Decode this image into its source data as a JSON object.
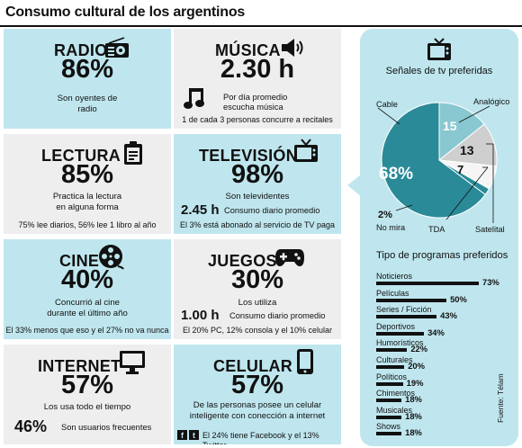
{
  "title": "Consumo cultural de los argentinos",
  "cards": {
    "radio": {
      "label": "RADIO",
      "pct": "86%",
      "desc": [
        "Son oyentes de",
        "radio"
      ]
    },
    "musica": {
      "label": "MÚSICA",
      "value": "2.30 h",
      "desc": [
        "Por día promedio",
        "escucha música"
      ],
      "extra": "1 de cada 3 personas concurre a recitales"
    },
    "lectura": {
      "label": "LECTURA",
      "pct": "85%",
      "desc": [
        "Practica la lectura",
        "en alguna forma"
      ],
      "extra": "75% lee diarios, 56% lee 1 libro al año"
    },
    "television": {
      "label": "TELEVISIÓN",
      "pct": "98%",
      "desc": [
        "Son televidentes"
      ],
      "sub_value": "2.45 h",
      "sub_desc": "Consumo diario promedio",
      "extra": "El 3% está abonado al servicio de TV paga"
    },
    "cine": {
      "label": "CINE",
      "pct": "40%",
      "desc": [
        "Concurrió al cine",
        "durante el último año"
      ],
      "extra": "El 33% menos que eso y el 27% no va nunca"
    },
    "juegos": {
      "label": "JUEGOS",
      "pct": "30%",
      "desc": [
        "Los utiliza"
      ],
      "sub_value": "1.00 h",
      "sub_desc": "Consumo diario promedio",
      "extra": "El 20% PC, 12% consola y el 10% celular"
    },
    "internet": {
      "label": "INTERNET",
      "pct": "57%",
      "desc": [
        "Los usa todo el tiempo"
      ],
      "sub_value": "46%",
      "sub_desc": "Son usuarios frecuentes"
    },
    "celular": {
      "label": "CELULAR",
      "pct": "57%",
      "desc": [
        "De las personas posee un celular",
        "inteligente con conección a internet"
      ],
      "extra": "El 24% tiene Facebook y el 13% Twitter",
      "social_icons": [
        "facebook-icon",
        "twitter-icon"
      ]
    }
  },
  "icons": [
    "radio-icon",
    "speaker-icon",
    "music-note-icon",
    "clipboard-icon",
    "tv-icon",
    "film-reel-icon",
    "gamepad-icon",
    "monitor-icon",
    "smartphone-icon"
  ],
  "colors": {
    "cyan": "#bfe6ee",
    "grey": "#eeeeee",
    "pie_main": "#2a8a98",
    "pie_light": "#89c8d1",
    "pie_grey": "#cfcfcf",
    "pie_white": "#f5f5f5"
  },
  "chart_data": [
    {
      "type": "pie",
      "title": "Señales de tv preferidas",
      "slices": [
        {
          "label": "Cable",
          "value": 68,
          "text": "68%"
        },
        {
          "label": "Analógico",
          "value": 15,
          "text": "15"
        },
        {
          "label": "Satelital",
          "value": 13,
          "text": "13"
        },
        {
          "label": "TDA",
          "value": 7,
          "text": "7"
        },
        {
          "label": "No mira",
          "value": 2,
          "text": "2%"
        }
      ]
    },
    {
      "type": "bar",
      "title": "Tipo de programas preferidos",
      "categories": [
        "Noticieros",
        "Películas",
        "Series / Ficción",
        "Deportivos",
        "Humorísticos",
        "Culturales",
        "Políticos",
        "Chimentos",
        "Musicales",
        "Shows"
      ],
      "values": [
        73,
        50,
        43,
        34,
        22,
        20,
        19,
        18,
        18,
        18
      ],
      "value_labels": [
        "73%",
        "50%",
        "43%",
        "34%",
        "22%",
        "20%",
        "19%",
        "18%",
        "18%",
        "18%"
      ]
    }
  ],
  "source": "Fuente: Télam"
}
